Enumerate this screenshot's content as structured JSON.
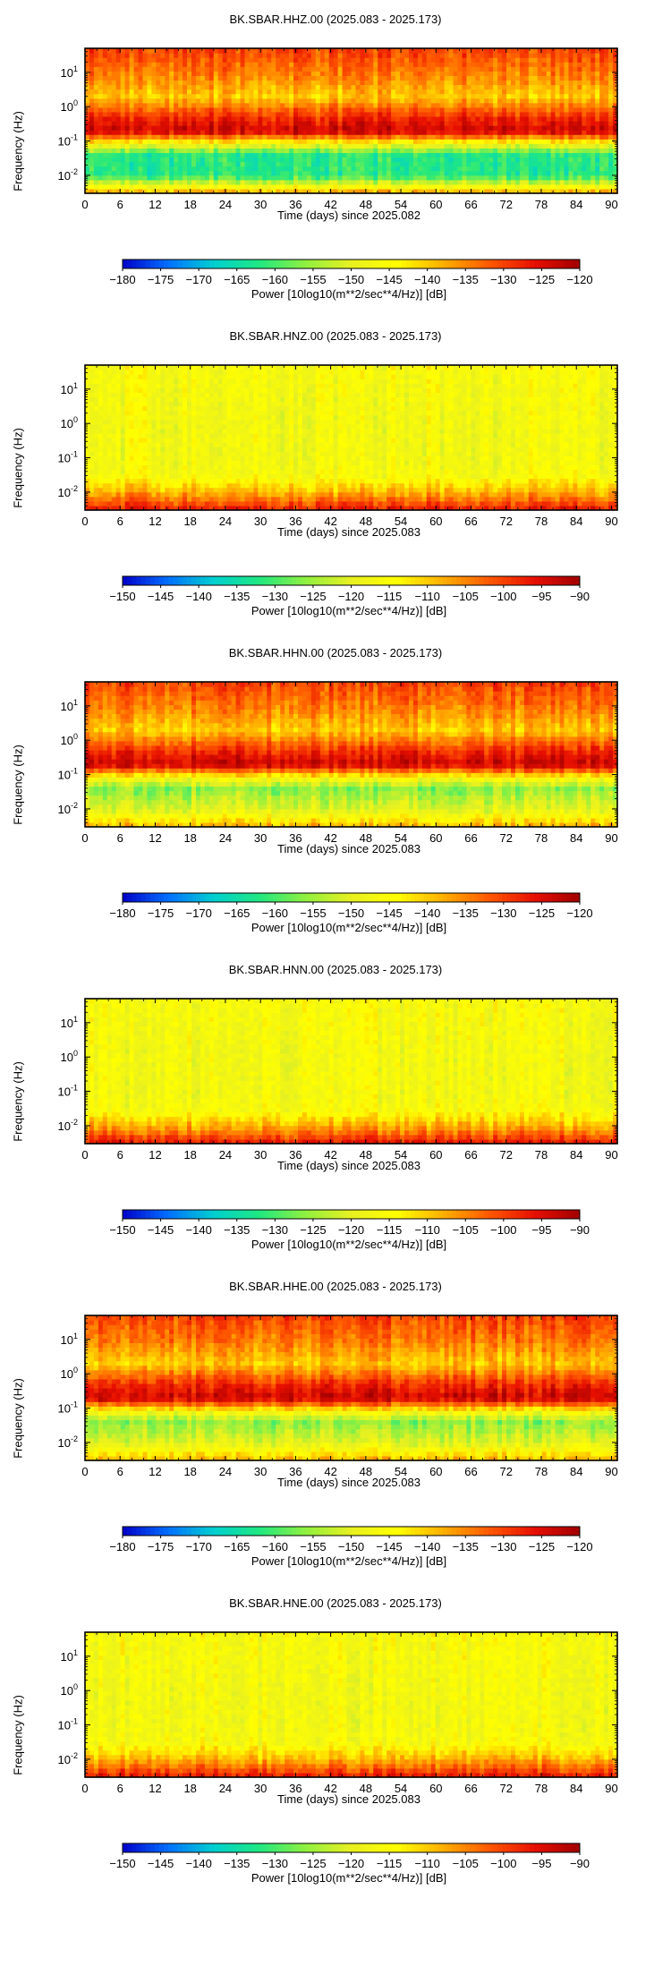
{
  "colormap": [
    "#0000c8",
    "#0070ff",
    "#00d0d0",
    "#20e880",
    "#90f040",
    "#e8f020",
    "#ffff00",
    "#ffb000",
    "#ff5a00",
    "#e81000",
    "#a00000"
  ],
  "chart_data": [
    {
      "type": "heatmap",
      "title": "BK.SBAR.HHZ.00 (2025.083 - 2025.173)",
      "xlabel": "Time (days) since 2025.082",
      "ylabel": "Frequency (Hz)",
      "xlim": [
        0,
        91
      ],
      "x_ticks": [
        "0",
        "6",
        "12",
        "18",
        "24",
        "30",
        "36",
        "42",
        "48",
        "54",
        "60",
        "66",
        "72",
        "78",
        "84",
        "90"
      ],
      "y_scale": "log",
      "ylim": [
        0.003,
        50
      ],
      "y_ticks": [
        {
          "base": "10",
          "exp": "1"
        },
        {
          "base": "10",
          "exp": "0"
        },
        {
          "base": "10",
          "exp": "-1"
        },
        {
          "base": "10",
          "exp": "-2"
        }
      ],
      "colorbar_label": "Power [10log10(m**2/sec**4/Hz)] [dB]",
      "clim": [
        -180,
        -120
      ],
      "colorbar_ticks": [
        "−180",
        "−175",
        "−170",
        "−165",
        "−160",
        "−155",
        "−150",
        "−145",
        "−140",
        "−135",
        "−130",
        "−125",
        "−120"
      ],
      "psd_profile_db": [
        {
          "f": 0.003,
          "db": -136
        },
        {
          "f": 0.01,
          "db": -162
        },
        {
          "f": 0.04,
          "db": -162
        },
        {
          "f": 0.08,
          "db": -148
        },
        {
          "f": 0.2,
          "db": -123
        },
        {
          "f": 0.5,
          "db": -128
        },
        {
          "f": 2,
          "db": -140
        },
        {
          "f": 10,
          "db": -134
        },
        {
          "f": 50,
          "db": -130
        }
      ]
    },
    {
      "type": "heatmap",
      "title": "BK.SBAR.HNZ.00 (2025.083 - 2025.173)",
      "xlabel": "Time (days) since 2025.083",
      "ylabel": "Frequency (Hz)",
      "xlim": [
        0,
        91
      ],
      "x_ticks": [
        "0",
        "6",
        "12",
        "18",
        "24",
        "30",
        "36",
        "42",
        "48",
        "54",
        "60",
        "66",
        "72",
        "78",
        "84",
        "90"
      ],
      "y_scale": "log",
      "ylim": [
        0.003,
        50
      ],
      "y_ticks": [
        {
          "base": "10",
          "exp": "1"
        },
        {
          "base": "10",
          "exp": "0"
        },
        {
          "base": "10",
          "exp": "-1"
        },
        {
          "base": "10",
          "exp": "-2"
        }
      ],
      "colorbar_label": "Power [10log10(m**2/sec**4/Hz)] [dB]",
      "clim": [
        -150,
        -90
      ],
      "colorbar_ticks": [
        "−150",
        "−145",
        "−140",
        "−135",
        "−130",
        "−125",
        "−120",
        "−115",
        "−110",
        "−105",
        "−100",
        "−95",
        "−90"
      ],
      "psd_profile_db": [
        {
          "f": 0.003,
          "db": -96
        },
        {
          "f": 0.01,
          "db": -108
        },
        {
          "f": 0.03,
          "db": -116
        },
        {
          "f": 0.1,
          "db": -117
        },
        {
          "f": 1,
          "db": -117
        },
        {
          "f": 50,
          "db": -116
        }
      ]
    },
    {
      "type": "heatmap",
      "title": "BK.SBAR.HHN.00 (2025.083 - 2025.173)",
      "xlabel": "Time (days) since 2025.083",
      "ylabel": "Frequency (Hz)",
      "xlim": [
        0,
        91
      ],
      "x_ticks": [
        "0",
        "6",
        "12",
        "18",
        "24",
        "30",
        "36",
        "42",
        "48",
        "54",
        "60",
        "66",
        "72",
        "78",
        "84",
        "90"
      ],
      "y_scale": "log",
      "ylim": [
        0.003,
        50
      ],
      "y_ticks": [
        {
          "base": "10",
          "exp": "1"
        },
        {
          "base": "10",
          "exp": "0"
        },
        {
          "base": "10",
          "exp": "-1"
        },
        {
          "base": "10",
          "exp": "-2"
        }
      ],
      "colorbar_label": "Power [10log10(m**2/sec**4/Hz)] [dB]",
      "clim": [
        -180,
        -120
      ],
      "colorbar_ticks": [
        "−180",
        "−175",
        "−170",
        "−165",
        "−160",
        "−155",
        "−150",
        "−145",
        "−140",
        "−135",
        "−130",
        "−125",
        "−120"
      ],
      "psd_profile_db": [
        {
          "f": 0.003,
          "db": -138
        },
        {
          "f": 0.01,
          "db": -150
        },
        {
          "f": 0.04,
          "db": -156
        },
        {
          "f": 0.08,
          "db": -146
        },
        {
          "f": 0.2,
          "db": -123
        },
        {
          "f": 0.5,
          "db": -128
        },
        {
          "f": 2,
          "db": -140
        },
        {
          "f": 10,
          "db": -134
        },
        {
          "f": 50,
          "db": -130
        }
      ]
    },
    {
      "type": "heatmap",
      "title": "BK.SBAR.HNN.00 (2025.083 - 2025.173)",
      "xlabel": "Time (days) since 2025.083",
      "ylabel": "Frequency (Hz)",
      "xlim": [
        0,
        91
      ],
      "x_ticks": [
        "0",
        "6",
        "12",
        "18",
        "24",
        "30",
        "36",
        "42",
        "48",
        "54",
        "60",
        "66",
        "72",
        "78",
        "84",
        "90"
      ],
      "y_scale": "log",
      "ylim": [
        0.003,
        50
      ],
      "y_ticks": [
        {
          "base": "10",
          "exp": "1"
        },
        {
          "base": "10",
          "exp": "0"
        },
        {
          "base": "10",
          "exp": "-1"
        },
        {
          "base": "10",
          "exp": "-2"
        }
      ],
      "colorbar_label": "Power [10log10(m**2/sec**4/Hz)] [dB]",
      "clim": [
        -150,
        -90
      ],
      "colorbar_ticks": [
        "−150",
        "−145",
        "−140",
        "−135",
        "−130",
        "−125",
        "−120",
        "−115",
        "−110",
        "−105",
        "−100",
        "−95",
        "−90"
      ],
      "psd_profile_db": [
        {
          "f": 0.003,
          "db": -96
        },
        {
          "f": 0.01,
          "db": -108
        },
        {
          "f": 0.03,
          "db": -116
        },
        {
          "f": 0.1,
          "db": -117
        },
        {
          "f": 1,
          "db": -117
        },
        {
          "f": 50,
          "db": -116
        }
      ]
    },
    {
      "type": "heatmap",
      "title": "BK.SBAR.HHE.00 (2025.083 - 2025.173)",
      "xlabel": "Time (days) since 2025.083",
      "ylabel": "Frequency (Hz)",
      "xlim": [
        0,
        91
      ],
      "x_ticks": [
        "0",
        "6",
        "12",
        "18",
        "24",
        "30",
        "36",
        "42",
        "48",
        "54",
        "60",
        "66",
        "72",
        "78",
        "84",
        "90"
      ],
      "y_scale": "log",
      "ylim": [
        0.003,
        50
      ],
      "y_ticks": [
        {
          "base": "10",
          "exp": "1"
        },
        {
          "base": "10",
          "exp": "0"
        },
        {
          "base": "10",
          "exp": "-1"
        },
        {
          "base": "10",
          "exp": "-2"
        }
      ],
      "colorbar_label": "Power [10log10(m**2/sec**4/Hz)] [dB]",
      "clim": [
        -180,
        -120
      ],
      "colorbar_ticks": [
        "−180",
        "−175",
        "−170",
        "−165",
        "−160",
        "−155",
        "−150",
        "−145",
        "−140",
        "−135",
        "−130",
        "−125",
        "−120"
      ],
      "psd_profile_db": [
        {
          "f": 0.003,
          "db": -138
        },
        {
          "f": 0.01,
          "db": -150
        },
        {
          "f": 0.04,
          "db": -156
        },
        {
          "f": 0.08,
          "db": -146
        },
        {
          "f": 0.2,
          "db": -123
        },
        {
          "f": 0.5,
          "db": -128
        },
        {
          "f": 2,
          "db": -140
        },
        {
          "f": 10,
          "db": -134
        },
        {
          "f": 50,
          "db": -130
        }
      ]
    },
    {
      "type": "heatmap",
      "title": "BK.SBAR.HNE.00 (2025.083 - 2025.173)",
      "xlabel": "Time (days) since 2025.083",
      "ylabel": "Frequency (Hz)",
      "xlim": [
        0,
        91
      ],
      "x_ticks": [
        "0",
        "6",
        "12",
        "18",
        "24",
        "30",
        "36",
        "42",
        "48",
        "54",
        "60",
        "66",
        "72",
        "78",
        "84",
        "90"
      ],
      "y_scale": "log",
      "ylim": [
        0.003,
        50
      ],
      "y_ticks": [
        {
          "base": "10",
          "exp": "1"
        },
        {
          "base": "10",
          "exp": "0"
        },
        {
          "base": "10",
          "exp": "-1"
        },
        {
          "base": "10",
          "exp": "-2"
        }
      ],
      "colorbar_label": "Power [10log10(m**2/sec**4/Hz)] [dB]",
      "clim": [
        -150,
        -90
      ],
      "colorbar_ticks": [
        "−150",
        "−145",
        "−140",
        "−135",
        "−130",
        "−125",
        "−120",
        "−115",
        "−110",
        "−105",
        "−100",
        "−95",
        "−90"
      ],
      "psd_profile_db": [
        {
          "f": 0.003,
          "db": -96
        },
        {
          "f": 0.01,
          "db": -108
        },
        {
          "f": 0.03,
          "db": -116
        },
        {
          "f": 0.1,
          "db": -117
        },
        {
          "f": 1,
          "db": -117
        },
        {
          "f": 50,
          "db": -116
        }
      ]
    }
  ]
}
